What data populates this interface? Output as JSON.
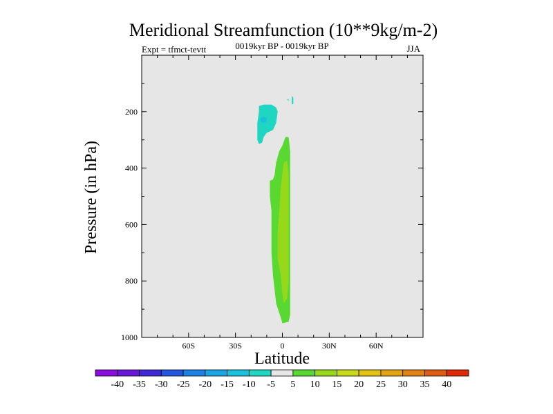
{
  "chart_data": {
    "type": "contour",
    "title": "Meridional Streamfunction (10**9kg/m-2)",
    "left_label": "Expt = tfmct-tevtt",
    "center_label": "0019kyr BP - 0019kyr BP",
    "right_label": "JJA",
    "xlabel": "Latitude",
    "ylabel": "Pressure (in hPa)",
    "xlim": [
      -90,
      90
    ],
    "ylim": [
      1000,
      0
    ],
    "x_ticks": [
      {
        "value": -60,
        "label": "60S"
      },
      {
        "value": -30,
        "label": "30S"
      },
      {
        "value": 0,
        "label": "0"
      },
      {
        "value": 30,
        "label": "30N"
      },
      {
        "value": 60,
        "label": "60N"
      }
    ],
    "y_ticks": [
      {
        "value": 200,
        "label": "200"
      },
      {
        "value": 400,
        "label": "400"
      },
      {
        "value": 600,
        "label": "600"
      },
      {
        "value": 800,
        "label": "800"
      },
      {
        "value": 1000,
        "label": "1000"
      }
    ],
    "background_color": "#e6e6e6",
    "contour_levels": [
      -40,
      -35,
      -30,
      -25,
      -20,
      -15,
      -10,
      -5,
      5,
      10,
      15,
      20,
      25,
      30,
      35,
      40
    ],
    "colorbar_colors": [
      "#8a0ee0",
      "#6a16d8",
      "#3f2ad6",
      "#2456e0",
      "#1c80e4",
      "#1aa6e4",
      "#18c2dc",
      "#1ed6c2",
      "#e6e6e6",
      "#5ad832",
      "#98d81a",
      "#c8d81a",
      "#e2c214",
      "#e2a414",
      "#e08214",
      "#e05c14",
      "#e02a0a"
    ],
    "regions": [
      {
        "level_range": "-10 to -5",
        "color": "#1ed6c2",
        "polygon": [
          [
            -15,
            180
          ],
          [
            -12,
            175
          ],
          [
            -7,
            175
          ],
          [
            -4,
            185
          ],
          [
            -3,
            200
          ],
          [
            -4,
            240
          ],
          [
            -6,
            265
          ],
          [
            -10,
            275
          ],
          [
            -12,
            290
          ],
          [
            -13,
            310
          ],
          [
            -15,
            315
          ],
          [
            -16,
            300
          ],
          [
            -16,
            240
          ],
          [
            -15,
            200
          ]
        ]
      },
      {
        "level_range": "-15 to -10",
        "color": "#18c2dc",
        "polygon": [
          [
            -14,
            222
          ],
          [
            -12,
            218
          ],
          [
            -10,
            222
          ],
          [
            -10,
            235
          ],
          [
            -12,
            240
          ],
          [
            -14,
            236
          ]
        ]
      },
      {
        "level_range": "-10 to -5",
        "color": "#1ed6c2",
        "polygon": [
          [
            6,
            145
          ],
          [
            7,
            150
          ],
          [
            7,
            172
          ],
          [
            6,
            175
          ]
        ]
      },
      {
        "level_range": "-10 to -5",
        "color": "#1ed6c2",
        "polygon": [
          [
            3,
            157
          ],
          [
            4,
            155
          ],
          [
            4,
            162
          ]
        ]
      },
      {
        "level_range": "5 to 10",
        "color": "#5ad832",
        "polygon": [
          [
            0,
            320
          ],
          [
            2,
            290
          ],
          [
            4,
            290
          ],
          [
            5,
            340
          ],
          [
            5,
            450
          ],
          [
            5,
            620
          ],
          [
            5,
            800
          ],
          [
            5,
            920
          ],
          [
            4,
            945
          ],
          [
            0,
            950
          ],
          [
            -1,
            930
          ],
          [
            -4,
            880
          ],
          [
            -6,
            780
          ],
          [
            -7,
            700
          ],
          [
            -7,
            550
          ],
          [
            -8,
            500
          ],
          [
            -8,
            445
          ],
          [
            -6,
            440
          ],
          [
            -5,
            425
          ],
          [
            -4,
            380
          ],
          [
            -2,
            340
          ]
        ]
      },
      {
        "level_range": "10 to 15",
        "color": "#98d81a",
        "polygon": [
          [
            1,
            380
          ],
          [
            3,
            375
          ],
          [
            4,
            420
          ],
          [
            4,
            600
          ],
          [
            4,
            800
          ],
          [
            3,
            860
          ],
          [
            1,
            880
          ],
          [
            0,
            845
          ],
          [
            -1,
            780
          ],
          [
            -3,
            720
          ],
          [
            -3,
            630
          ],
          [
            -2,
            550
          ],
          [
            -1,
            470
          ],
          [
            0,
            420
          ]
        ]
      }
    ]
  }
}
